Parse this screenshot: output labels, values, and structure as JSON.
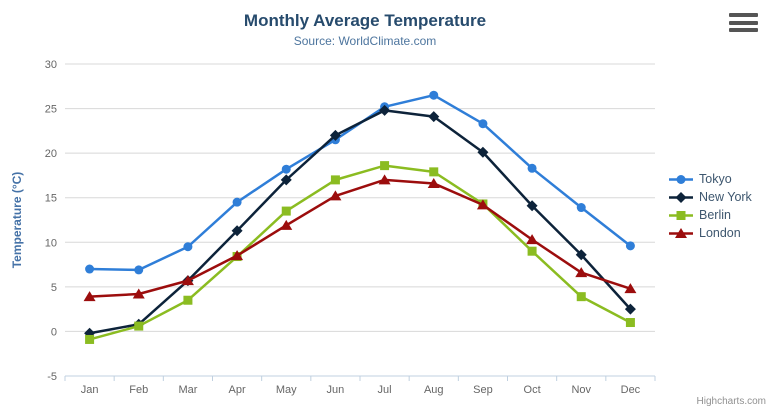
{
  "credit": "Highcharts.com",
  "colors": {
    "grid": "#d8d8d8",
    "axis_line": "#c0d0e0",
    "tick_label": "#666666",
    "title": "#274b6d",
    "subtitle": "#4d759e",
    "axis_title": "#4572a7",
    "legend_text": "#3e576f",
    "credit_text": "#909090"
  },
  "chart_data": {
    "type": "line",
    "title": "Monthly Average Temperature",
    "subtitle": "Source: WorldClimate.com",
    "xlabel": "",
    "ylabel": "Temperature (°C)",
    "ylim": [
      -5,
      30
    ],
    "ytick_step": 5,
    "grid": true,
    "legend_position": "right",
    "categories": [
      "Jan",
      "Feb",
      "Mar",
      "Apr",
      "May",
      "Jun",
      "Jul",
      "Aug",
      "Sep",
      "Oct",
      "Nov",
      "Dec"
    ],
    "series": [
      {
        "name": "Tokyo",
        "color": "#2f7ed8",
        "marker": "circle",
        "values": [
          7.0,
          6.9,
          9.5,
          14.5,
          18.2,
          21.5,
          25.2,
          26.5,
          23.3,
          18.3,
          13.9,
          9.6
        ]
      },
      {
        "name": "New York",
        "color": "#0d233a",
        "marker": "diamond",
        "values": [
          -0.2,
          0.8,
          5.7,
          11.3,
          17.0,
          22.0,
          24.8,
          24.1,
          20.1,
          14.1,
          8.6,
          2.5
        ]
      },
      {
        "name": "Berlin",
        "color": "#8bbc21",
        "marker": "square",
        "values": [
          -0.9,
          0.6,
          3.5,
          8.4,
          13.5,
          17.0,
          18.6,
          17.9,
          14.3,
          9.0,
          3.9,
          1.0
        ]
      },
      {
        "name": "London",
        "color": "#9c0d0d",
        "marker": "triangle",
        "values": [
          3.9,
          4.2,
          5.7,
          8.5,
          11.9,
          15.2,
          17.0,
          16.6,
          14.2,
          10.3,
          6.6,
          4.8
        ]
      }
    ]
  }
}
